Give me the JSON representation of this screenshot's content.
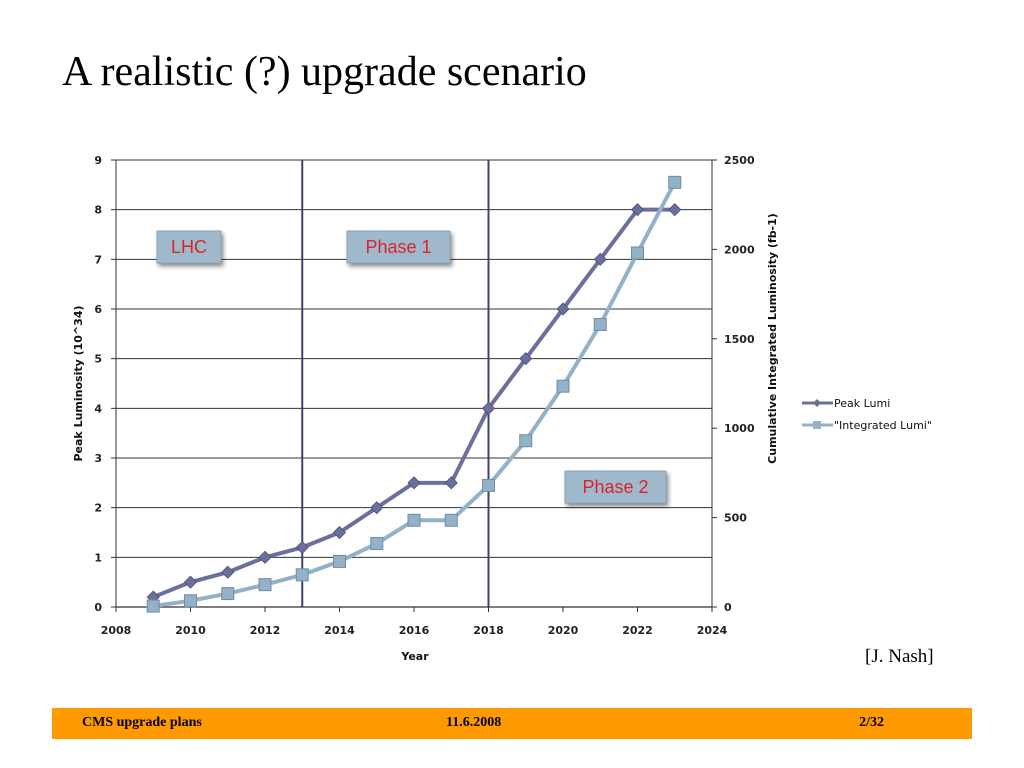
{
  "slide": {
    "title": "A realistic (?) upgrade scenario",
    "citation": "[J. Nash]",
    "footer": {
      "left": "CMS upgrade plans",
      "center": "11.6.2008",
      "right": "2/32"
    }
  },
  "colors": {
    "peak": "#6b6f9c",
    "integrated": "#93b1c7",
    "phase_text": "#d7262b",
    "footer_bg": "#ff9900"
  },
  "chart_data": {
    "type": "line",
    "xlabel": "Year",
    "ylabel_left": "Peak Luminosity (10^34)",
    "ylabel_right": "Cumulative Integrated Luminosity (fb-1)",
    "xlim": [
      2008,
      2024
    ],
    "ylim_left": [
      0,
      9
    ],
    "ylim_right": [
      0,
      2500
    ],
    "x_ticks": [
      2008,
      2010,
      2012,
      2014,
      2016,
      2018,
      2020,
      2022,
      2024
    ],
    "y_left_ticks": [
      0,
      1,
      2,
      3,
      4,
      5,
      6,
      7,
      8,
      9
    ],
    "y_right_ticks": [
      0,
      500,
      1000,
      1500,
      2000,
      2500
    ],
    "grid": "horizontal",
    "legend_position": "right",
    "phase_dividers": [
      2013,
      2018
    ],
    "phase_labels": [
      "LHC",
      "Phase 1",
      "Phase 2"
    ],
    "series": [
      {
        "name": "Peak Lumi",
        "axis": "left",
        "marker": "diamond",
        "x": [
          2009,
          2010,
          2011,
          2012,
          2013,
          2014,
          2015,
          2016,
          2017,
          2018,
          2019,
          2020,
          2021,
          2022,
          2023
        ],
        "values": [
          0.2,
          0.5,
          0.7,
          1.0,
          1.2,
          1.5,
          2.0,
          2.5,
          2.5,
          4.0,
          5.0,
          6.0,
          7.0,
          8.0,
          8.0
        ]
      },
      {
        "name": "\"Integrated Lumi\"",
        "axis": "right",
        "marker": "square",
        "x": [
          2009,
          2010,
          2011,
          2012,
          2013,
          2014,
          2015,
          2016,
          2017,
          2018,
          2019,
          2020,
          2021,
          2022,
          2023
        ],
        "values": [
          5,
          35,
          75,
          125,
          180,
          255,
          355,
          485,
          485,
          680,
          930,
          1235,
          1580,
          1980,
          2375
        ]
      }
    ]
  }
}
